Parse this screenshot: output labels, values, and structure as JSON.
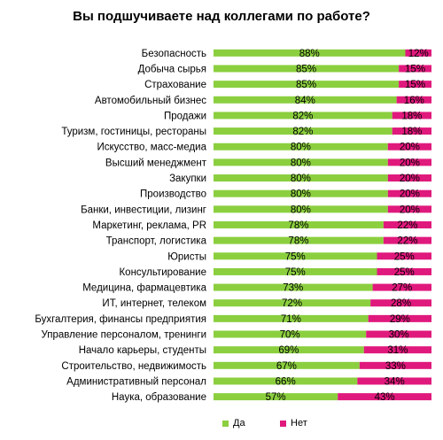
{
  "chart_data": {
    "type": "bar",
    "stacked": true,
    "orientation": "horizontal",
    "percent_stacked": true,
    "title": "Вы подшучиваете над коллегами по работе?",
    "categories": [
      "Безопасность",
      "Добыча сырья",
      "Страхование",
      "Автомобильный  бизнес",
      "Продажи",
      "Туризм,  гостиницы, рестораны",
      "Искусство, масс-медиа",
      "Высший менеджмент",
      "Закупки",
      "Производство",
      "Банки, инвестиции, лизинг",
      "Маркетинг, реклама, PR",
      "Транспорт, логистика",
      "Юристы",
      "Консультирование",
      "Медицина, фармацевтика",
      "ИТ, интернет, телеком",
      "Бухгалтерия, финансы предприятия",
      "Управление персоналом, тренинги",
      "Начало карьеры, студенты",
      "Строительство, недвижимость",
      "Административный персонал",
      "Наука, образование"
    ],
    "series": [
      {
        "name": "Да",
        "color": "#8bcf3f",
        "values": [
          88,
          85,
          85,
          84,
          82,
          82,
          80,
          80,
          80,
          80,
          80,
          78,
          78,
          75,
          75,
          73,
          72,
          71,
          70,
          69,
          67,
          66,
          57
        ],
        "labels": [
          "88%",
          "85%",
          "85%",
          "84%",
          "82%",
          "82%",
          "80%",
          "80%",
          "80%",
          "80%",
          "80%",
          "78%",
          "78%",
          "75%",
          "75%",
          "73%",
          "72%",
          "71%",
          "70%",
          "69%",
          "67%",
          "66%",
          "57%"
        ]
      },
      {
        "name": "Нет",
        "color": "#e0197d",
        "values": [
          12,
          15,
          15,
          16,
          18,
          18,
          20,
          20,
          20,
          20,
          20,
          22,
          22,
          25,
          25,
          27,
          28,
          29,
          30,
          31,
          33,
          34,
          43
        ],
        "labels": [
          "12%",
          "15%",
          "15%",
          "16%",
          "18%",
          "18%",
          "20%",
          "20%",
          "20%",
          "20%",
          "20%",
          "22%",
          "22%",
          "25%",
          "25%",
          "27%",
          "28%",
          "29%",
          "30%",
          "31%",
          "33%",
          "34%",
          "43%"
        ]
      }
    ],
    "xlim": [
      0,
      100
    ],
    "legend_position": "bottom"
  }
}
